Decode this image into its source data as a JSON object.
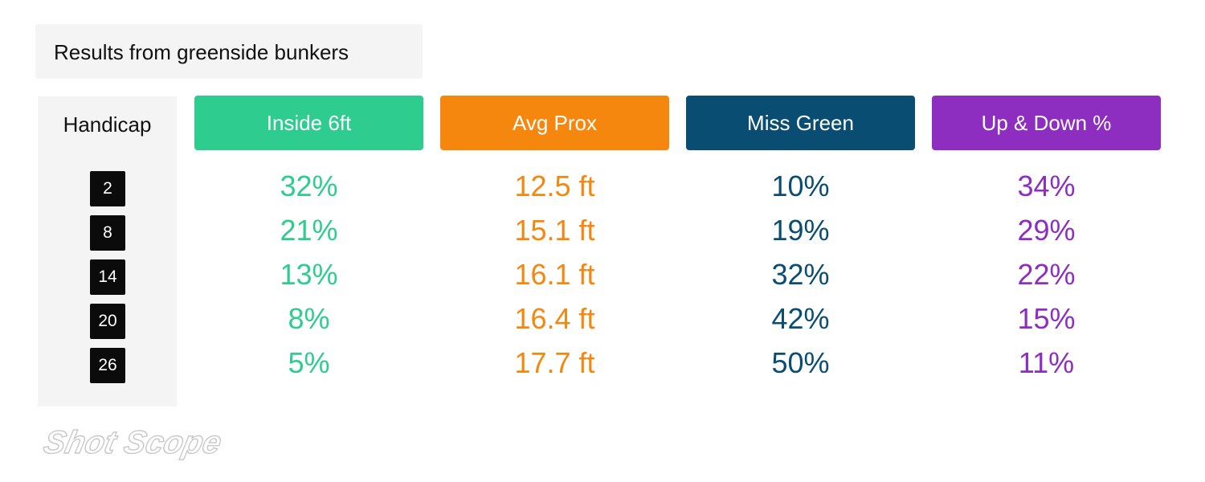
{
  "title": "Results from greenside bunkers",
  "row_header_label": "Handicap",
  "logo_text": "Shot Scope",
  "colors": {
    "inside_6ft": "#2ecc8f",
    "avg_prox": "#f5870f",
    "miss_green": "#0a4d73",
    "up_and_down": "#8e2ec0"
  },
  "chart_data": {
    "type": "table",
    "title": "Results from greenside bunkers",
    "row_header": "Handicap",
    "rows": [
      "2",
      "8",
      "14",
      "20",
      "26"
    ],
    "columns": [
      {
        "label": "Inside 6ft",
        "values": [
          "32%",
          "21%",
          "13%",
          "8%",
          "5%"
        ]
      },
      {
        "label": "Avg Prox",
        "values": [
          "12.5 ft",
          "15.1 ft",
          "16.1 ft",
          "16.4 ft",
          "17.7 ft"
        ]
      },
      {
        "label": "Miss Green",
        "values": [
          "10%",
          "19%",
          "32%",
          "42%",
          "50%"
        ]
      },
      {
        "label": "Up & Down %",
        "values": [
          "34%",
          "29%",
          "22%",
          "15%",
          "11%"
        ]
      }
    ]
  }
}
